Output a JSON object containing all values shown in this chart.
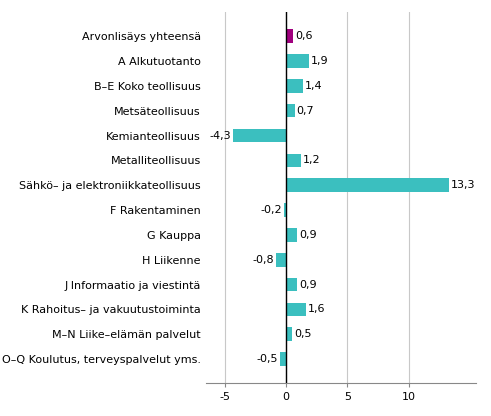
{
  "categories": [
    "O–Q Koulutus, terveyspalvelut yms.",
    "M–N Liike–elämän palvelut",
    "K Rahoitus– ja vakuutustoiminta",
    "J Informaatio ja viestintä",
    "H Liikenne",
    "G Kauppa",
    "F Rakentaminen",
    "Sähkö– ja elektroniikkateollisuus",
    "Metalliteollisuus",
    "Kemianteollisuus",
    "Metsäteollisuus",
    "B–E Koko teollisuus",
    "A Alkutuotanto",
    "Arvonlisäys yhteensä"
  ],
  "values": [
    -0.5,
    0.5,
    1.6,
    0.9,
    -0.8,
    0.9,
    -0.2,
    13.3,
    1.2,
    -4.3,
    0.7,
    1.4,
    1.9,
    0.6
  ],
  "bar_colors": [
    "#3bbfbf",
    "#3bbfbf",
    "#3bbfbf",
    "#3bbfbf",
    "#3bbfbf",
    "#3bbfbf",
    "#3bbfbf",
    "#3bbfbf",
    "#3bbfbf",
    "#3bbfbf",
    "#3bbfbf",
    "#3bbfbf",
    "#3bbfbf",
    "#a0007e"
  ],
  "xlim": [
    -6.5,
    15.5
  ],
  "xticks": [
    -5,
    0,
    5,
    10
  ],
  "grid_color": "#c8c8c8",
  "bar_height": 0.55,
  "label_fontsize": 8.0,
  "value_fontsize": 8.0,
  "background_color": "#ffffff"
}
